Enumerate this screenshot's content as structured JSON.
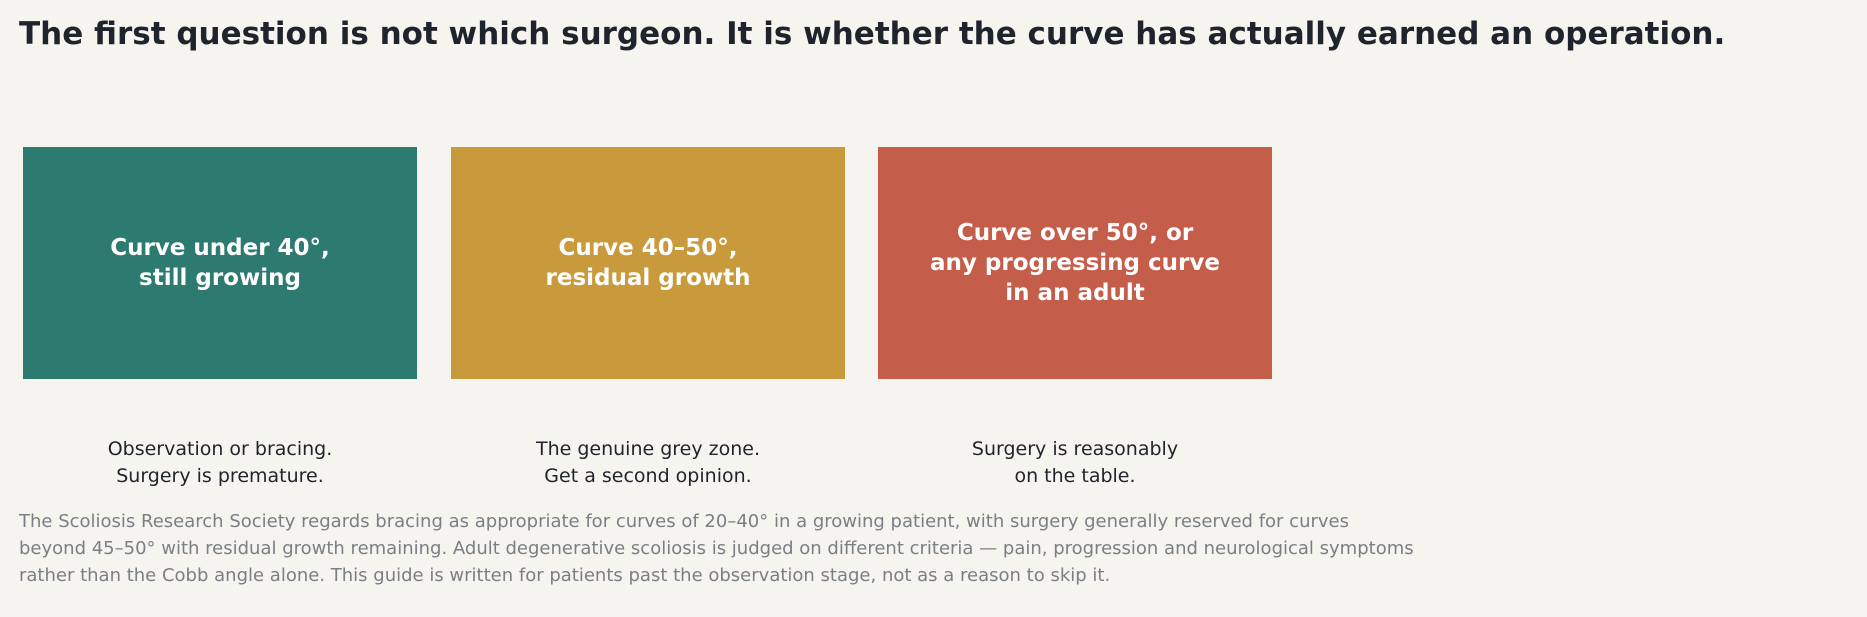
{
  "headline": "The first question is not which surgeon. It is whether the curve has actually earned an operation.",
  "cards": [
    {
      "label": "Curve under 40°,\nstill growing",
      "caption": "Observation or bracing.\nSurgery is premature.",
      "color": "#2d7a70"
    },
    {
      "label": "Curve 40–50°,\nresidual growth",
      "caption": "The genuine grey zone.\nGet a second opinion.",
      "color": "#c99a3b"
    },
    {
      "label": "Curve over 50°, or\nany progressing curve\nin an adult",
      "caption": "Surgery is reasonably\non the table.",
      "color": "#c45d49"
    }
  ],
  "footnote": "The Scoliosis Research Society regards bracing as appropriate for curves of 20–40° in a growing patient, with surgery generally reserved for curves\nbeyond 45–50° with residual growth remaining. Adult degenerative scoliosis is judged on different criteria — pain, progression and neurological symptoms\nrather than the Cobb angle alone. This guide is written for patients past the observation stage, not as a reason to skip it."
}
